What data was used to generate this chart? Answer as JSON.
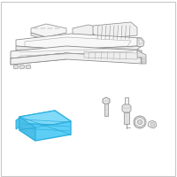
{
  "bg_color": "#ffffff",
  "border_color": "#c8c8c8",
  "line_color": "#aaaaaa",
  "dark_line": "#888888",
  "highlight_edge": "#2bb0df",
  "highlight_fill": "#5ccef5",
  "highlight_top": "#80daf8",
  "fig_size": [
    2.0,
    2.0
  ],
  "dpi": 100
}
